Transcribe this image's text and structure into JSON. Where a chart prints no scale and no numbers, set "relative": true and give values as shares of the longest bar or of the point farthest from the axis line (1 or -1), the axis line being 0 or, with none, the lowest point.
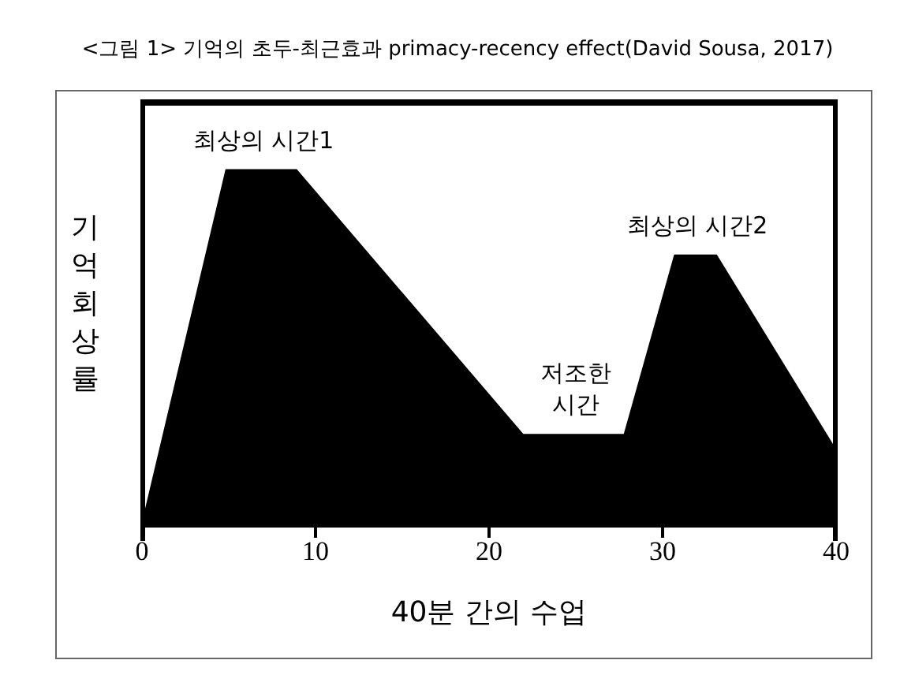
{
  "chart_data": {
    "type": "area",
    "title": "<그림 1> 기억의 초두-최근효과 primacy-recency effect(David Sousa, 2017)",
    "xlabel": "40분 간의 수업",
    "ylabel": "기억 회상률",
    "relative": true,
    "x": [
      0,
      4.85,
      8.9,
      21.95,
      27.8,
      30.7,
      33.1,
      40
    ],
    "series": [
      {
        "color": "#000000",
        "values": [
          0,
          1,
          1,
          0.255,
          0.255,
          0.76,
          0.76,
          0.21
        ]
      }
    ],
    "xlim": [
      0,
      40
    ],
    "xticks": [
      0,
      10,
      20,
      30,
      40
    ],
    "annotations": [
      {
        "text": "최상의 시간1",
        "x": 7,
        "y": 1
      },
      {
        "text": "저조한\n시간",
        "x": 25,
        "y": 0.255
      },
      {
        "text": "최상의 시간2",
        "x": 32,
        "y": 0.76
      }
    ]
  }
}
